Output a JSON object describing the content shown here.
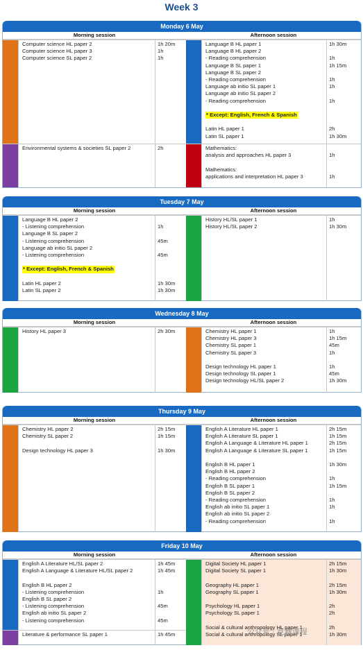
{
  "week_title": "Week 3",
  "headers": {
    "morning": "Morning session",
    "afternoon": "Afternoon session"
  },
  "except_text": "* Except: English, French & Spanish",
  "days": [
    {
      "name": "Monday 6 May",
      "morning": [
        {
          "color": "#e07318",
          "rows": [
            [
              "Computer science HL paper 2",
              "1h 20m"
            ],
            [
              "Computer science HL paper 3",
              "1h"
            ],
            [
              "Computer science SL paper 2",
              "1h"
            ]
          ]
        },
        {
          "color": "#7a3fa0",
          "rows": [
            [
              "Environmental systems & societies SL paper 2",
              "2h"
            ]
          ]
        }
      ],
      "afternoon": [
        {
          "color": "#1769c2",
          "rows": [
            [
              "Language B HL paper 1",
              "1h 30m"
            ],
            [
              "Language B HL paper 2",
              ""
            ],
            [
              "- Reading comprehension",
              "1h"
            ],
            [
              "Language B SL paper 1",
              "1h 15m"
            ],
            [
              "Language B SL paper 2",
              ""
            ],
            [
              "- Reading comprehension",
              "1h"
            ],
            [
              "Language ab initio SL paper 1",
              "1h"
            ],
            [
              "Language ab initio SL paper 2",
              ""
            ],
            [
              "- Reading comprehension",
              "1h"
            ],
            [
              "",
              ""
            ],
            [
              "* Except: English, French & Spanish",
              ""
            ],
            [
              "",
              ""
            ],
            [
              "Latin HL paper 1",
              "2h"
            ],
            [
              "Latin SL paper 1",
              "1h 30m"
            ]
          ]
        },
        {
          "color": "#c00010",
          "rows": [
            [
              "Mathematics:",
              ""
            ],
            [
              "analysis and approaches HL paper 3",
              "1h"
            ],
            [
              "",
              ""
            ],
            [
              "Mathematics:",
              ""
            ],
            [
              "applications and interpretation HL paper 3",
              "1h"
            ]
          ]
        }
      ]
    },
    {
      "name": "Tuesday 7 May",
      "morning": [
        {
          "color": "#1769c2",
          "rows": [
            [
              "Language B HL paper 2",
              ""
            ],
            [
              "- Listening comprehension",
              "1h"
            ],
            [
              "Language B SL paper 2",
              ""
            ],
            [
              "- Listening comprehension",
              "45m"
            ],
            [
              "Language ab initio SL paper 2",
              ""
            ],
            [
              "- Listening comprehension",
              "45m"
            ],
            [
              "",
              ""
            ],
            [
              "* Except: English, French & Spanish",
              ""
            ],
            [
              "",
              ""
            ],
            [
              "Latin HL paper 2",
              "1h 30m"
            ],
            [
              "Latin SL paper 2",
              "1h 30m"
            ]
          ]
        }
      ],
      "afternoon": [
        {
          "color": "#1aa541",
          "rows": [
            [
              "History HL/SL paper 1",
              "1h"
            ],
            [
              "History HL/SL paper 2",
              "1h 30m"
            ]
          ]
        }
      ]
    },
    {
      "name": "Wednesday 8 May",
      "morning": [
        {
          "color": "#1aa541",
          "rows": [
            [
              "History HL paper 3",
              "2h 30m"
            ]
          ]
        }
      ],
      "afternoon": [
        {
          "color": "#e07318",
          "rows": [
            [
              "Chemistry HL paper 1",
              "1h"
            ],
            [
              "Chemistry HL paper 3",
              "1h 15m"
            ],
            [
              "Chemistry SL paper 1",
              "45m"
            ],
            [
              "Chemistry SL paper 3",
              "1h"
            ],
            [
              "",
              ""
            ],
            [
              "Design technology HL paper 1",
              "1h"
            ],
            [
              "Design technology SL paper 1",
              "45m"
            ],
            [
              "Design technology HL/SL paper 2",
              "1h 30m"
            ]
          ]
        }
      ]
    },
    {
      "name": "Thursday 9 May",
      "morning": [
        {
          "color": "#e07318",
          "rows": [
            [
              "Chemistry HL paper 2",
              "2h 15m"
            ],
            [
              "Chemistry SL paper 2",
              "1h 15m"
            ],
            [
              "",
              ""
            ],
            [
              "Design technology HL paper 3",
              "1h 30m"
            ]
          ]
        }
      ],
      "afternoon": [
        {
          "color": "#1769c2",
          "rows": [
            [
              "English A Literature HL paper 1",
              "2h 15m"
            ],
            [
              "English A Literature SL paper 1",
              "1h 15m"
            ],
            [
              "English A Language & Literature HL paper 1",
              "2h 15m"
            ],
            [
              "English A Language & Literature SL paper 1",
              "1h 15m"
            ],
            [
              "",
              ""
            ],
            [
              "English B HL paper 1",
              "1h 30m"
            ],
            [
              "English B HL paper 2",
              ""
            ],
            [
              "- Reading comprehension",
              "1h"
            ],
            [
              "English B SL paper 1",
              "1h 15m"
            ],
            [
              "English B SL paper 2",
              ""
            ],
            [
              "- Reading comprehension",
              "1h"
            ],
            [
              "English ab initio SL paper 1",
              "1h"
            ],
            [
              "English ab initio SL paper 2",
              ""
            ],
            [
              "- Reading comprehension",
              "1h"
            ]
          ]
        }
      ]
    },
    {
      "name": "Friday 10 May",
      "morning": [
        {
          "color": "#1769c2",
          "rows": [
            [
              "English A Literature HL/SL paper 2",
              "1h 45m"
            ],
            [
              "English A Language & Literature HL/SL paper 2",
              "1h 45m"
            ],
            [
              "",
              ""
            ],
            [
              "English B HL paper 2",
              ""
            ],
            [
              "- Listening comprehension",
              "1h"
            ],
            [
              "English B SL paper 2",
              ""
            ],
            [
              "- Listening comprehension",
              "45m"
            ],
            [
              "English ab initio SL paper 2",
              ""
            ],
            [
              "- Listening comprehension",
              "45m"
            ]
          ]
        },
        {
          "color": "#7a3fa0",
          "rows": [
            [
              "Literature & performance SL paper 1",
              "1h 45m"
            ]
          ]
        }
      ],
      "afternoon": [
        {
          "color": "#1aa541",
          "rows": [
            [
              "Digital Society HL paper 1",
              "2h 15m"
            ],
            [
              "Digital Society SL paper 1",
              "1h 30m"
            ],
            [
              "",
              ""
            ],
            [
              "Geography HL paper 1",
              "2h 15m"
            ],
            [
              "Geography SL paper 1",
              "1h 30m"
            ],
            [
              "",
              ""
            ],
            [
              "Psychology HL paper 1",
              "2h"
            ],
            [
              "Psychology SL paper 1",
              "2h"
            ],
            [
              "",
              ""
            ],
            [
              "Social & cultural anthropology HL paper 1",
              "2h"
            ],
            [
              "Social & cultural anthropology SL paper 1",
              "1h 30m"
            ]
          ]
        }
      ]
    }
  ],
  "watermark": "公众号 · 竞赛课程"
}
